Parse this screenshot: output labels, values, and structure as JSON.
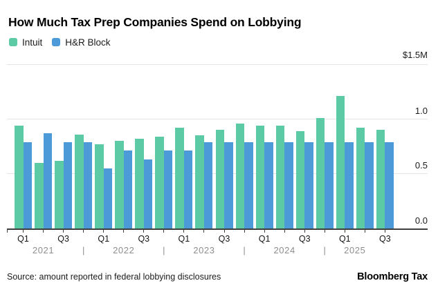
{
  "title": "How Much Tax Prep Companies Spend on Lobbying",
  "legend": {
    "items": [
      {
        "label": "Intuit",
        "color": "#5CCBA5"
      },
      {
        "label": "H&R Block",
        "color": "#4C9BD8"
      }
    ]
  },
  "y_axis": {
    "max_label": "$1.5M",
    "tick_labels": [
      "1.0",
      "0.5",
      "0.0"
    ]
  },
  "chart_data": {
    "type": "bar",
    "unit": "millions of USD per quarter",
    "ylim": [
      0,
      1.5
    ],
    "grid": true,
    "legend_position": "top-left",
    "categories": [
      "2021 Q1",
      "2021 Q2",
      "2021 Q3",
      "2021 Q4",
      "2022 Q1",
      "2022 Q2",
      "2022 Q3",
      "2022 Q4",
      "2023 Q1",
      "2023 Q2",
      "2023 Q3",
      "2023 Q4",
      "2024 Q1",
      "2024 Q2",
      "2024 Q3",
      "2024 Q4",
      "2025 Q1",
      "2025 Q2",
      "2025 Q3"
    ],
    "series": [
      {
        "name": "Intuit",
        "color": "#5CCBA5",
        "values": [
          0.94,
          0.6,
          0.62,
          0.86,
          0.77,
          0.8,
          0.82,
          0.84,
          0.92,
          0.85,
          0.9,
          0.96,
          0.94,
          0.94,
          0.89,
          1.01,
          1.21,
          0.92,
          0.9
        ]
      },
      {
        "name": "H&R Block",
        "color": "#4C9BD8",
        "values": [
          0.79,
          0.87,
          0.79,
          0.79,
          0.55,
          0.71,
          0.63,
          0.71,
          0.71,
          0.79,
          0.79,
          0.79,
          0.79,
          0.79,
          0.79,
          0.79,
          0.79,
          0.79,
          0.79
        ]
      }
    ],
    "x_axis": {
      "quarter_ticks": [
        {
          "label": "Q1",
          "group": 0
        },
        {
          "label": "Q3",
          "group": 2
        },
        {
          "label": "Q1",
          "group": 4
        },
        {
          "label": "Q3",
          "group": 6
        },
        {
          "label": "Q1",
          "group": 8
        },
        {
          "label": "Q3",
          "group": 10
        },
        {
          "label": "Q1",
          "group": 12
        },
        {
          "label": "Q3",
          "group": 14
        },
        {
          "label": "Q1",
          "group": 16
        },
        {
          "label": "Q3",
          "group": 18
        }
      ],
      "years": [
        {
          "label": "2021",
          "start": 0,
          "end": 3
        },
        {
          "label": "2022",
          "start": 4,
          "end": 7
        },
        {
          "label": "2023",
          "start": 8,
          "end": 11
        },
        {
          "label": "2024",
          "start": 12,
          "end": 15
        },
        {
          "label": "2025",
          "start": 16,
          "end": 18
        }
      ],
      "separator": "|"
    }
  },
  "footer": {
    "source": "Source: amount reported in federal lobbying disclosures",
    "brand": "Bloomberg Tax"
  }
}
